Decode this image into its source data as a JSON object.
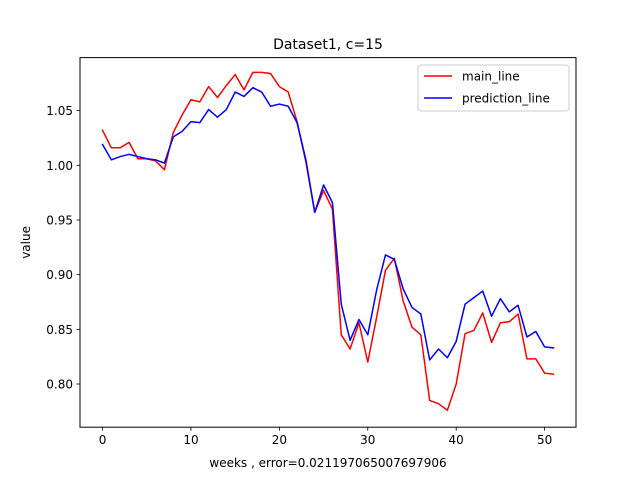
{
  "chart_data": {
    "type": "line",
    "title": "Dataset1, c=15",
    "xlabel": "weeks , error=0.021197065007697906",
    "ylabel": "value",
    "xlim": [
      -2.55,
      53.55
    ],
    "ylim": [
      0.7605,
      1.0985
    ],
    "xticks": [
      0,
      10,
      20,
      30,
      40,
      50
    ],
    "yticks": [
      0.8,
      0.85,
      0.9,
      0.95,
      1.0,
      1.05
    ],
    "xtick_labels": [
      "0",
      "10",
      "20",
      "30",
      "40",
      "50"
    ],
    "ytick_labels": [
      "0.80",
      "0.85",
      "0.90",
      "0.95",
      "1.00",
      "1.05"
    ],
    "grid": false,
    "legend_position": "top-right",
    "series": [
      {
        "name": "main_line",
        "color": "#ff0000",
        "x": [
          0,
          1,
          2,
          3,
          4,
          5,
          6,
          7,
          8,
          9,
          10,
          11,
          12,
          13,
          14,
          15,
          16,
          17,
          18,
          19,
          20,
          21,
          22,
          23,
          24,
          25,
          26,
          27,
          28,
          29,
          30,
          31,
          32,
          33,
          34,
          35,
          36,
          37,
          38,
          39,
          40,
          41,
          42,
          43,
          44,
          45,
          46,
          47,
          48,
          49,
          50,
          51
        ],
        "y": [
          1.032,
          1.016,
          1.016,
          1.021,
          1.006,
          1.006,
          1.004,
          0.996,
          1.03,
          1.046,
          1.06,
          1.058,
          1.072,
          1.062,
          1.073,
          1.083,
          1.069,
          1.085,
          1.085,
          1.084,
          1.072,
          1.067,
          1.04,
          1.003,
          0.957,
          0.977,
          0.96,
          0.845,
          0.832,
          0.856,
          0.82,
          0.861,
          0.904,
          0.915,
          0.876,
          0.852,
          0.845,
          0.785,
          0.782,
          0.776,
          0.8,
          0.846,
          0.849,
          0.865,
          0.838,
          0.856,
          0.857,
          0.864,
          0.823,
          0.823,
          0.81,
          0.809
        ]
      },
      {
        "name": "prediction_line",
        "color": "#0000ff",
        "x": [
          0,
          1,
          2,
          3,
          4,
          5,
          6,
          7,
          8,
          9,
          10,
          11,
          12,
          13,
          14,
          15,
          16,
          17,
          18,
          19,
          20,
          21,
          22,
          23,
          24,
          25,
          26,
          27,
          28,
          29,
          30,
          31,
          32,
          33,
          34,
          35,
          36,
          37,
          38,
          39,
          40,
          41,
          42,
          43,
          44,
          45,
          46,
          47,
          48,
          49,
          50,
          51
        ],
        "y": [
          1.019,
          1.005,
          1.008,
          1.01,
          1.008,
          1.006,
          1.005,
          1.002,
          1.026,
          1.031,
          1.04,
          1.039,
          1.051,
          1.044,
          1.051,
          1.067,
          1.063,
          1.071,
          1.067,
          1.054,
          1.056,
          1.054,
          1.039,
          1.005,
          0.957,
          0.982,
          0.966,
          0.873,
          0.84,
          0.859,
          0.845,
          0.886,
          0.918,
          0.914,
          0.887,
          0.87,
          0.864,
          0.822,
          0.832,
          0.824,
          0.839,
          0.873,
          0.879,
          0.885,
          0.862,
          0.878,
          0.866,
          0.872,
          0.843,
          0.848,
          0.834,
          0.833
        ]
      }
    ]
  }
}
